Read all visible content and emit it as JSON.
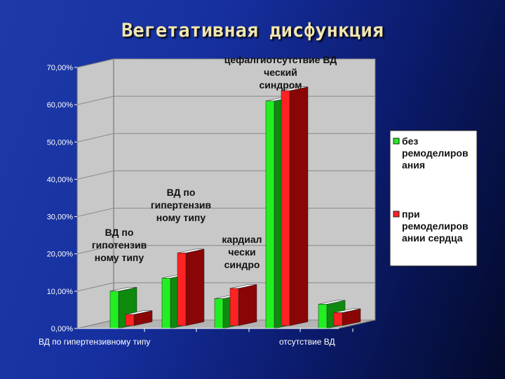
{
  "title": "Вегетативная дисфункция",
  "chart_data": {
    "type": "bar",
    "categories": [
      "ВД по гипотензивному типу",
      "ВД по гипертензивному типу",
      "кардиалгический синдром",
      "цефалгический синдром",
      "отсутствие ВД"
    ],
    "x_tick_labels": [
      "ВД по гипертензивному типу",
      "отсутствие ВД"
    ],
    "series": [
      {
        "name": "без ремоделирования",
        "values": [
          10.0,
          13.5,
          8.0,
          61.0,
          6.5
        ]
      },
      {
        "name": "при ремоделировании сердца",
        "values": [
          3.0,
          19.5,
          10.0,
          63.0,
          3.5
        ]
      }
    ],
    "ylim": [
      0,
      70
    ],
    "yticks": [
      "0,00%",
      "10,00%",
      "20,00%",
      "30,00%",
      "40,00%",
      "50,00%",
      "60,00%",
      "70,00%"
    ],
    "annotations": [
      {
        "lines": [
          "ВД по",
          "гипотензив",
          "ному типу"
        ]
      },
      {
        "lines": [
          "ВД по",
          "гипертензив",
          "ному типу"
        ]
      },
      {
        "lines": [
          "кардиал",
          "чески",
          "синдро"
        ]
      },
      {
        "lines": [
          "цефалгиотсутствие ВД",
          "ческий",
          "синдром"
        ]
      }
    ],
    "legend_position": "right",
    "colors": {
      "green_front": "#22ee22",
      "green_side": "#0e8a0e",
      "red_front": "#ff2222",
      "red_side": "#8a0606",
      "wall": "#c8c8c8",
      "wall_edge": "#666666"
    }
  }
}
